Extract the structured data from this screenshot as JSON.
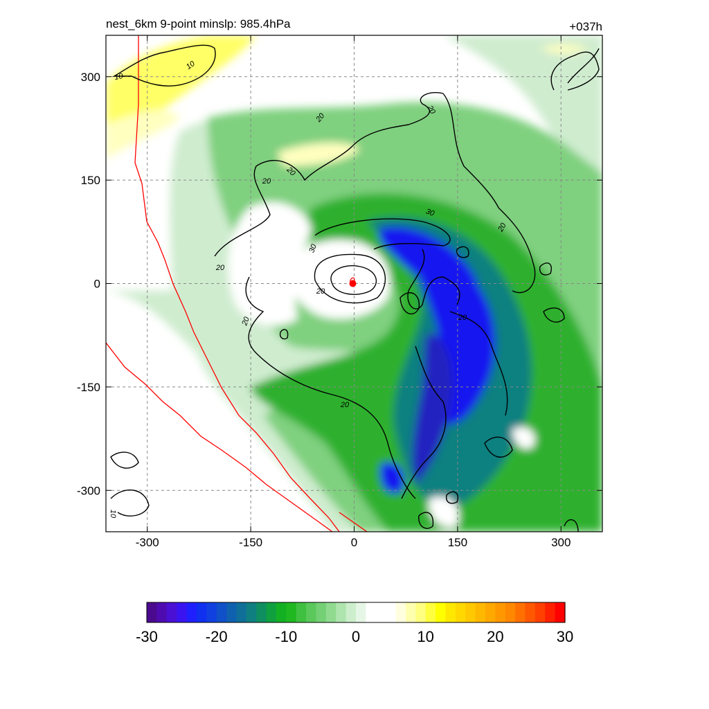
{
  "chart_data": {
    "type": "heatmap",
    "title_left": "nest_6km  9-point minslp: 985.4hPa",
    "title_right": "+037h",
    "xlim": [
      -360,
      360
    ],
    "ylim": [
      -360,
      360
    ],
    "xticks": [
      -300,
      -150,
      0,
      150,
      300
    ],
    "yticks": [
      -300,
      -150,
      0,
      150,
      300
    ],
    "xtick_labels": [
      "-300",
      "-150",
      "0",
      "150",
      "300"
    ],
    "ytick_labels": [
      "-300",
      "-150",
      "0",
      "150",
      "300"
    ],
    "grid": true,
    "colorbar": {
      "range": [
        -30,
        30
      ],
      "tick_values": [
        -30,
        -20,
        -10,
        0,
        10,
        20,
        30
      ],
      "tick_labels": [
        "-30",
        "-20",
        "-10",
        "0",
        "10",
        "20",
        "30"
      ],
      "colors": [
        "#4b0a8e",
        "#4e0cb0",
        "#4a10d4",
        "#3a14f0",
        "#2020ff",
        "#1030f0",
        "#1040e0",
        "#1050c8",
        "#1060b0",
        "#0f6f98",
        "#0f7f80",
        "#0f8f60",
        "#10a040",
        "#14b024",
        "#20b820",
        "#40c040",
        "#5ac85a",
        "#74d074",
        "#90da90",
        "#aee4ae",
        "#cceecc",
        "#e6f6e6",
        "#ffffff",
        "#ffffff",
        "#ffffff",
        "#ffffe0",
        "#ffffb0",
        "#ffff80",
        "#ffff40",
        "#ffff00",
        "#ffe800",
        "#ffd800",
        "#ffc800",
        "#ffb800",
        "#ffa800",
        "#ff9800",
        "#ff8800",
        "#ff7000",
        "#ff5800",
        "#ff4000",
        "#ff2000",
        "#ff0000"
      ]
    },
    "shading_colors": {
      "light_green": "#cfeccf",
      "mid_green": "#7fd07f",
      "dark_green": "#2fb02f",
      "teal": "#108080",
      "blue": "#1414f0",
      "dark_blue": "#2020c0",
      "yellow": "#ffff66",
      "pale_yellow": "#ffffc0"
    },
    "contour_labels": [
      "10",
      "10",
      "20",
      "20",
      "20",
      "20",
      "20",
      "20",
      "20",
      "20",
      "20",
      "20",
      "30",
      "30",
      "10"
    ],
    "boundary_color": "#ff0000",
    "contour_color": "#000000",
    "center_marker": {
      "x": -2,
      "y": 0
    }
  }
}
